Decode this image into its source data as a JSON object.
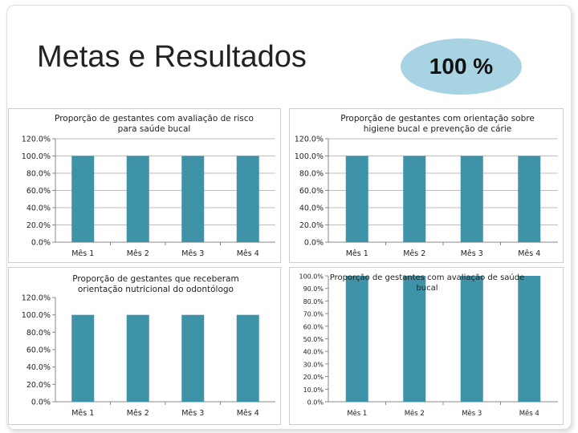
{
  "page": {
    "title": "Metas e Resultados",
    "badge": "100 %"
  },
  "colors": {
    "bar": "#3e93a9",
    "grid": "#bdbdbd",
    "badge": "#a8d3e3"
  },
  "chart_data": [
    {
      "type": "bar",
      "title": "Proporção de gestantes com avaliação de risco para saúde bucal",
      "categories": [
        "Mês 1",
        "Mês 2",
        "Mês 3",
        "Mês 4"
      ],
      "values": [
        100,
        100,
        100,
        100
      ],
      "yticks": [
        "0.0%",
        "20.0%",
        "40.0%",
        "60.0%",
        "80.0%",
        "100.0%",
        "120.0%"
      ],
      "ylim": [
        0,
        120
      ],
      "grid": true,
      "legend": "none"
    },
    {
      "type": "bar",
      "title": "Proporção de gestantes com orientação sobre higiene bucal e prevenção de cárie",
      "categories": [
        "Mês 1",
        "Mês 2",
        "Mês 3",
        "Mês 4"
      ],
      "values": [
        100,
        100,
        100,
        100
      ],
      "yticks": [
        "0.0%",
        "20.0%",
        "40.0%",
        "60.0%",
        "80.0%",
        "100.0%",
        "120.0%"
      ],
      "ylim": [
        0,
        120
      ],
      "grid": true,
      "legend": "none"
    },
    {
      "type": "bar",
      "title": "Proporção de gestantes que receberam orientação nutricional do odontólogo",
      "categories": [
        "Mês 1",
        "Mês 2",
        "Mês 3",
        "Mês 4"
      ],
      "values": [
        100,
        100,
        100,
        100
      ],
      "yticks": [
        "0.0%",
        "20.0%",
        "40.0%",
        "60.0%",
        "80.0%",
        "100.0%",
        "120.0%"
      ],
      "ylim": [
        0,
        120
      ],
      "grid": false,
      "legend": "none"
    },
    {
      "type": "bar",
      "title": "Proporção de gestantes com avaliação de saúde bucal",
      "categories": [
        "Mês 1",
        "Mês 2",
        "Mês 3",
        "Mês 4"
      ],
      "values": [
        100,
        100,
        100,
        100
      ],
      "yticks": [
        "0.0%",
        "10.0%",
        "20.0%",
        "30.0%",
        "40.0%",
        "50.0%",
        "60.0%",
        "70.0%",
        "80.0%",
        "90.0%",
        "100.0%"
      ],
      "ylim": [
        0,
        100
      ],
      "grid": false,
      "legend": "none"
    }
  ]
}
